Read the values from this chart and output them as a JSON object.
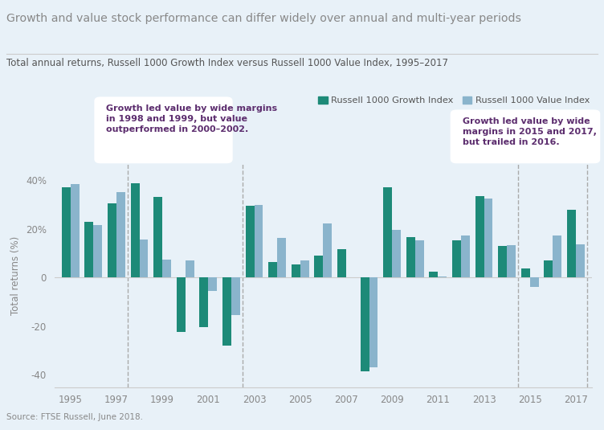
{
  "years": [
    1995,
    1996,
    1997,
    1998,
    1999,
    2000,
    2001,
    2002,
    2003,
    2004,
    2005,
    2006,
    2007,
    2008,
    2009,
    2010,
    2011,
    2012,
    2013,
    2014,
    2015,
    2016,
    2017
  ],
  "growth": [
    37.2,
    23.1,
    30.5,
    38.7,
    33.2,
    -22.4,
    -20.4,
    -27.9,
    29.7,
    6.3,
    5.3,
    9.1,
    11.8,
    -38.4,
    37.2,
    16.7,
    2.6,
    15.3,
    33.5,
    13.0,
    3.8,
    7.1,
    27.9
  ],
  "value": [
    38.4,
    21.6,
    35.2,
    15.6,
    7.4,
    7.0,
    -5.6,
    -15.5,
    30.0,
    16.5,
    7.1,
    22.3,
    0.0,
    -36.8,
    19.7,
    15.5,
    0.4,
    17.5,
    32.5,
    13.4,
    -3.8,
    17.3,
    13.7
  ],
  "title": "Growth and value stock performance can differ widely over annual and multi-year periods",
  "subtitle": "Total annual returns, Russell 1000 Growth Index versus Russell 1000 Value Index, 1995–2017",
  "ylabel": "Total returns (%)",
  "source": "Source: FTSE Russell, June 2018.",
  "growth_color": "#1d8a78",
  "value_color": "#8ab4cc",
  "bg_color": "#e8f1f8",
  "title_color": "#888888",
  "subtitle_color": "#555555",
  "annotation1_text": "Growth led value by wide margins\nin 1998 and 1999, but value\noutperformed in 2000–2002.",
  "annotation2_text": "Growth led value by wide\nmargins in 2015 and 2017,\nbut trailed in 2016.",
  "annotation_color": "#5c2d6e",
  "ylim": [
    -45,
    47
  ],
  "yticks": [
    -40,
    -20,
    0,
    20,
    40
  ],
  "legend_growth": "Russell 1000 Growth Index",
  "legend_value": "Russell 1000 Value Index"
}
